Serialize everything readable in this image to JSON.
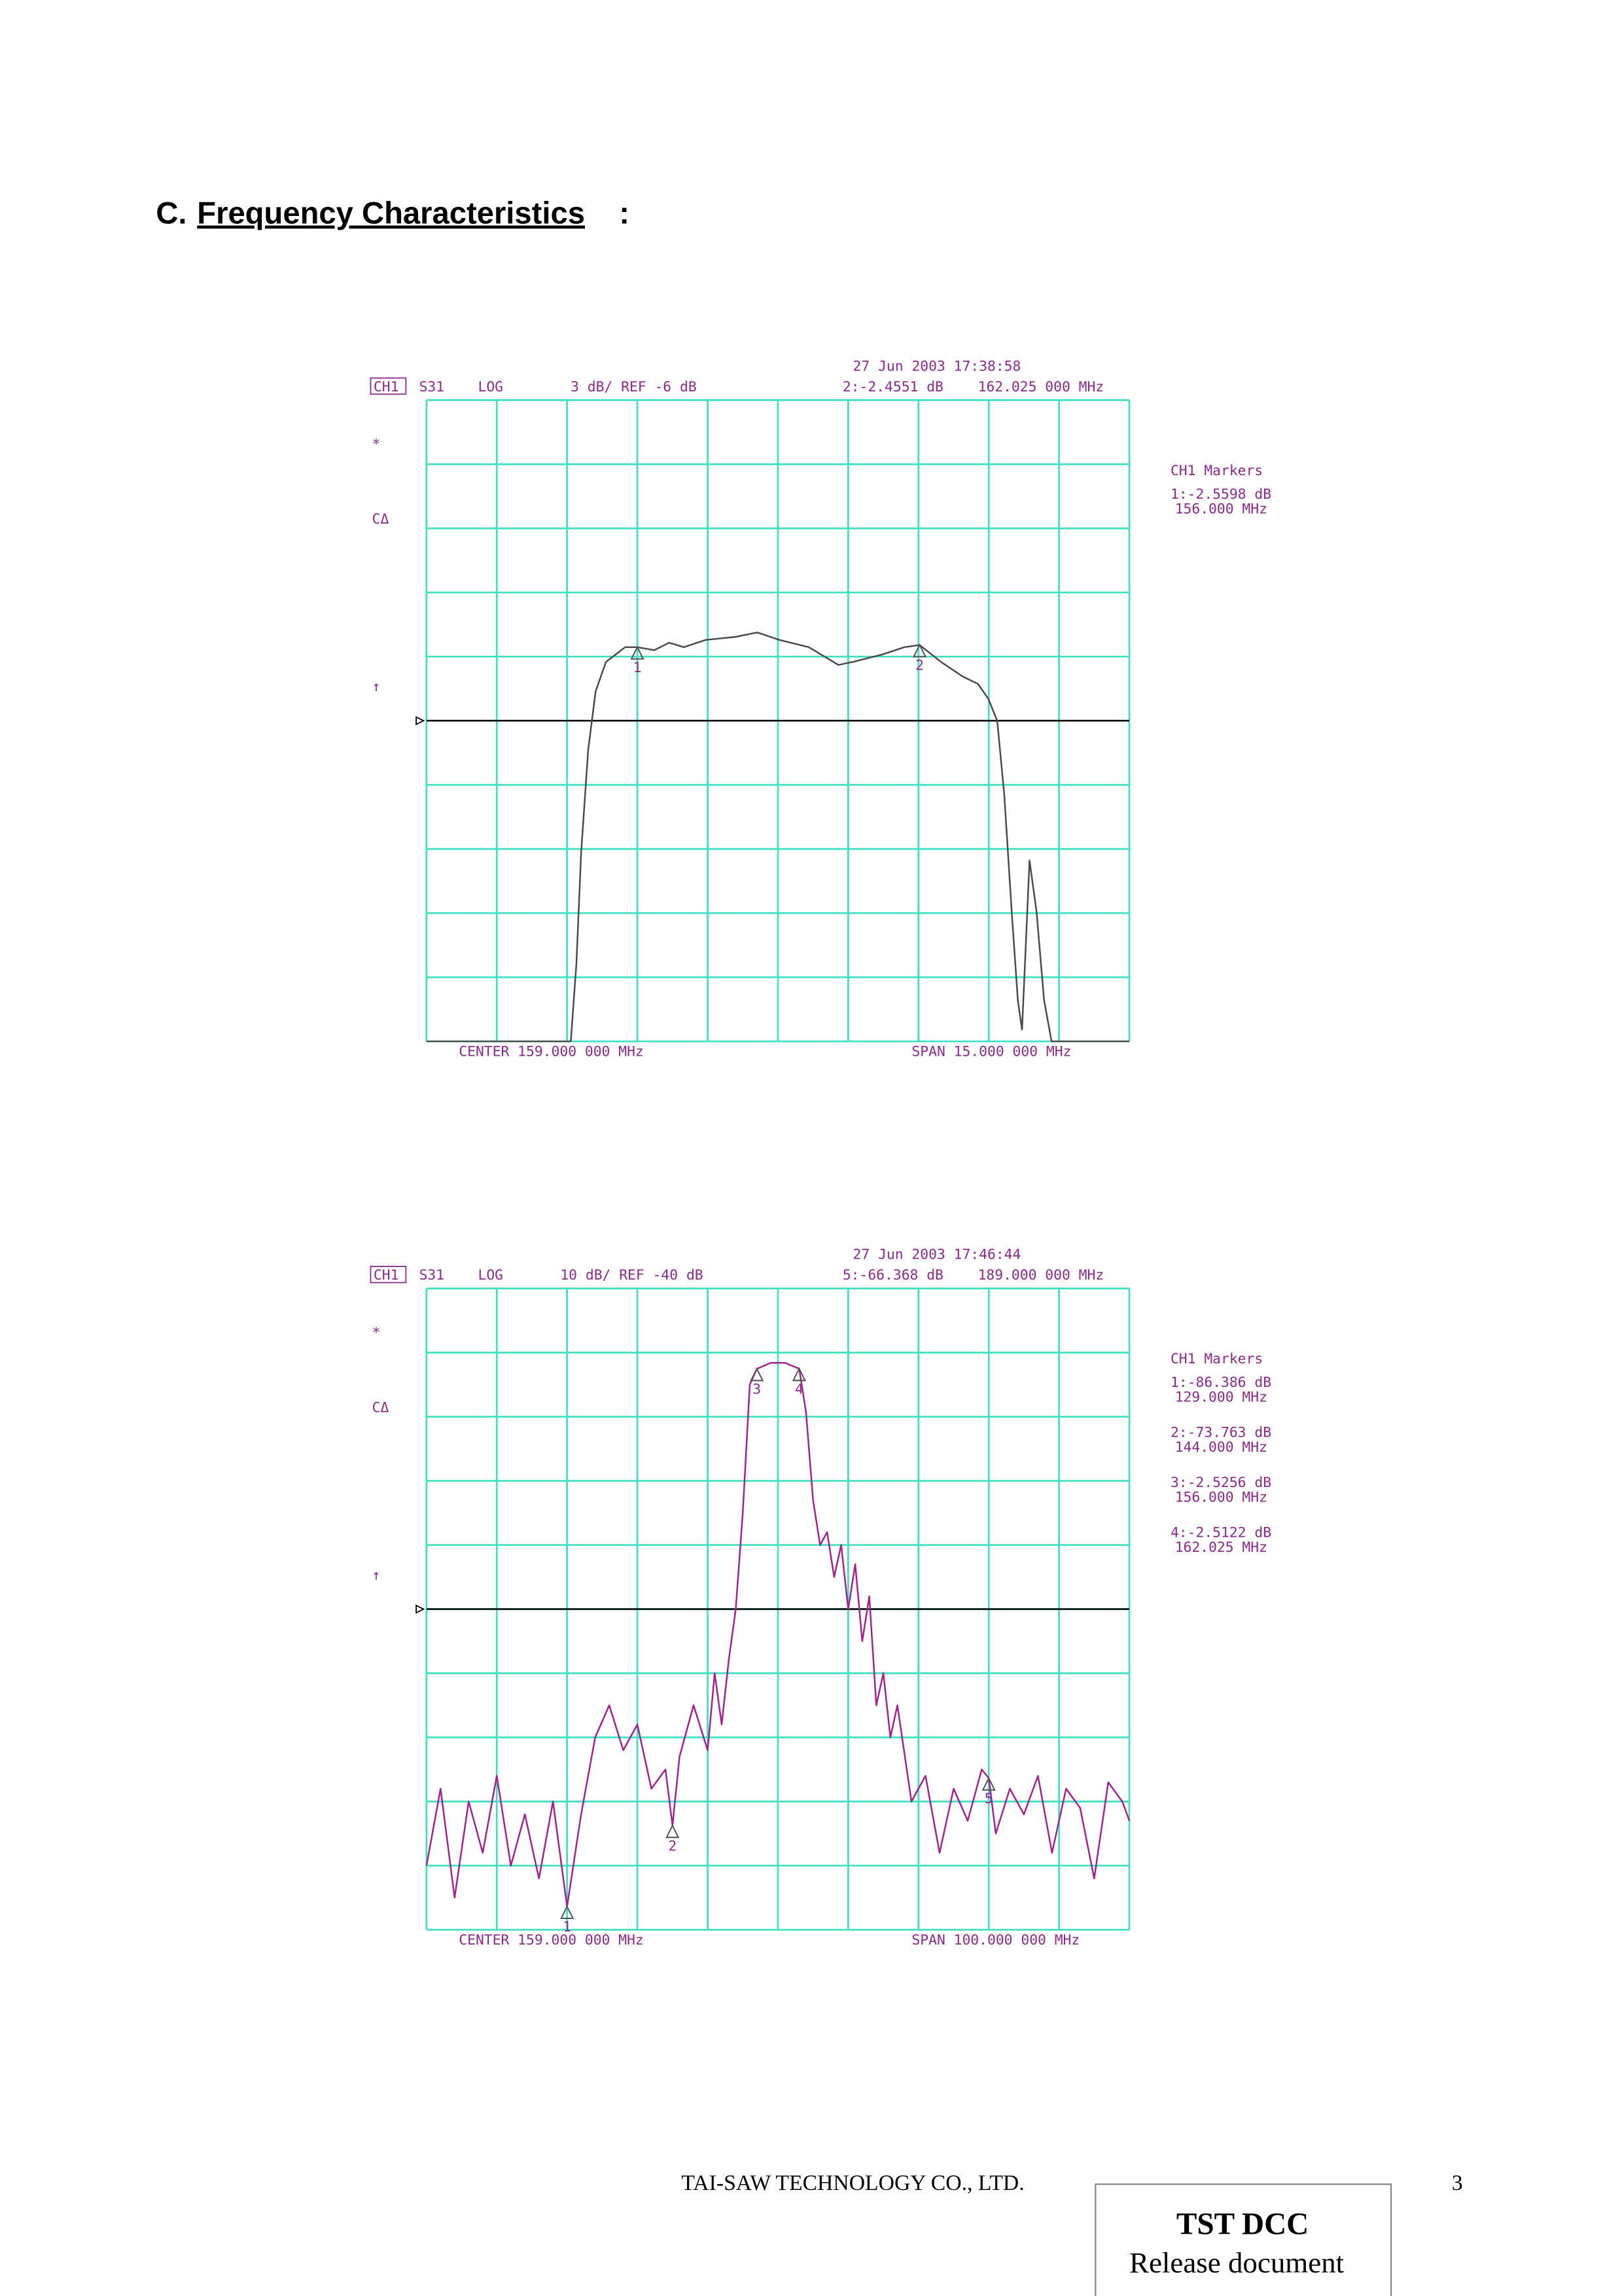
{
  "heading": {
    "prefix": "C.",
    "title": "Frequency Characteristics",
    "suffix": ":"
  },
  "chart_data": [
    {
      "type": "line",
      "channel": "CH1",
      "parameter": "S31",
      "format": "LOG",
      "scale": "3 dB/ REF -6 dB",
      "timestamp": "27 Jun 2003  17:38:58",
      "active_marker": "2:-2.4551 dB",
      "active_marker_freq": "162.025 000 MHz",
      "symbols": [
        "*",
        "CΔ",
        "↑"
      ],
      "center": "CENTER 159.000 000 MHz",
      "span": "SPAN 15.000 000 MHz",
      "marker_panel_title": "CH1 Markers",
      "marker_readouts": [
        "1:-2.5598 dB",
        "156.000 MHz"
      ],
      "ref_level": -6,
      "color": "#4a4a4a",
      "grid": true,
      "xlim": [
        151.5,
        166.5
      ],
      "ylim": [
        -21,
        9
      ],
      "xticks": [
        151.5,
        153,
        154.5,
        156,
        157.5,
        159,
        160.5,
        162,
        163.5,
        165,
        166.5
      ],
      "yticks": [
        9,
        6,
        3,
        0,
        -3,
        -6,
        -9,
        -12,
        -15,
        -18,
        -21
      ],
      "x": [
        151.5,
        154.58,
        154.7,
        154.8,
        154.95,
        155.11,
        155.33,
        155.74,
        156,
        156.36,
        156.68,
        156.99,
        157.46,
        158.09,
        158.56,
        159.03,
        159.66,
        160.29,
        160.6,
        161.23,
        161.7,
        162.025,
        162.48,
        162.95,
        163.27,
        163.49,
        163.68,
        163.83,
        163.99,
        164.12,
        164.21,
        164.37,
        164.52,
        164.68,
        164.84,
        166.5
      ],
      "values": [
        -21,
        -21,
        -17.35,
        -12.19,
        -7.38,
        -4.62,
        -3.25,
        -2.56,
        -2.56,
        -2.7,
        -2.35,
        -2.56,
        -2.22,
        -2.08,
        -1.87,
        -2.22,
        -2.56,
        -3.39,
        -3.25,
        -2.9,
        -2.56,
        -2.46,
        -3.25,
        -3.94,
        -4.28,
        -4.97,
        -6,
        -9.44,
        -14.94,
        -19.07,
        -20.45,
        -12.54,
        -14.94,
        -19.07,
        -21,
        -21
      ],
      "markers": [
        {
          "label": "1",
          "x": 156,
          "y": -2.5598
        },
        {
          "label": "2",
          "x": 162.025,
          "y": -2.4551
        }
      ]
    },
    {
      "type": "line",
      "channel": "CH1",
      "parameter": "S31",
      "format": "LOG",
      "scale": "10 dB/ REF -40 dB",
      "timestamp": "27 Jun 2003  17:46:44",
      "active_marker": "5:-66.368 dB",
      "active_marker_freq": "189.000 000 MHz",
      "symbols": [
        "*",
        "CΔ",
        "↑"
      ],
      "center": "CENTER 159.000 000 MHz",
      "span": "SPAN 100.000 000 MHz",
      "marker_panel_title": "CH1 Markers",
      "marker_readouts": [
        "1:-86.386 dB",
        "129.000 MHz",
        "2:-73.763 dB",
        "144.000 MHz",
        "3:-2.5256 dB",
        "156.000 MHz",
        "4:-2.5122 dB",
        "162.025 MHz"
      ],
      "ref_level": -40,
      "color": "#a3208f",
      "grid": true,
      "xlim": [
        109,
        209
      ],
      "ylim": [
        -90,
        10
      ],
      "xticks": [
        109,
        119,
        129,
        139,
        149,
        159,
        169,
        179,
        189,
        199,
        209
      ],
      "yticks": [
        10,
        0,
        -10,
        -20,
        -30,
        -40,
        -50,
        -60,
        -70,
        -80,
        -90
      ],
      "x": [
        109,
        111,
        113,
        115,
        117,
        119,
        121,
        123,
        125,
        127,
        129,
        131,
        133,
        135,
        137,
        139,
        141,
        143,
        144,
        145,
        147,
        149,
        150,
        151,
        152,
        153,
        154,
        155,
        156,
        158,
        160,
        162.025,
        163,
        164,
        165,
        166,
        167,
        168,
        169,
        170,
        171,
        172,
        173,
        174,
        175,
        176,
        178,
        180,
        182,
        184,
        186,
        188,
        189,
        190,
        192,
        194,
        196,
        198,
        200,
        202,
        204,
        206,
        208,
        209
      ],
      "values": [
        -80,
        -68,
        -85,
        -70,
        -78,
        -66,
        -80,
        -72,
        -82,
        -70,
        -86.386,
        -72,
        -60,
        -55,
        -62,
        -58,
        -68,
        -65,
        -73.763,
        -63,
        -55,
        -62,
        -50,
        -58,
        -48,
        -40,
        -25,
        -5,
        -2.5256,
        -1.6,
        -1.6,
        -2.5122,
        -9.3,
        -23,
        -30,
        -28,
        -35,
        -30,
        -40,
        -33,
        -45,
        -38,
        -55,
        -50,
        -60,
        -55,
        -70,
        -66,
        -78,
        -68,
        -73,
        -65,
        -66.368,
        -75,
        -68,
        -72,
        -66,
        -78,
        -68,
        -71,
        -82,
        -67,
        -70,
        -73
      ],
      "markers": [
        {
          "label": "1",
          "x": 129,
          "y": -86.386
        },
        {
          "label": "2",
          "x": 144,
          "y": -73.763
        },
        {
          "label": "3",
          "x": 156,
          "y": -2.5256
        },
        {
          "label": "4",
          "x": 162.025,
          "y": -2.5122
        },
        {
          "label": "5",
          "x": 189,
          "y": -66.368
        }
      ]
    }
  ],
  "footer": {
    "company": "TAI-SAW TECHNOLOGY CO., LTD.",
    "page": "3",
    "stamp_title": "TST DCC",
    "stamp_text": "Release document"
  }
}
